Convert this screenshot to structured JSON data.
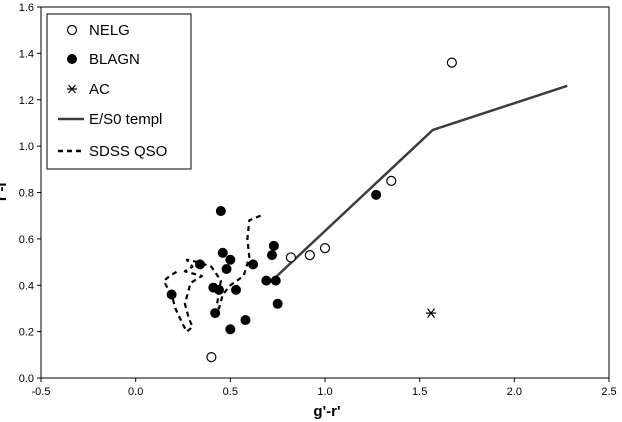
{
  "chart_data": {
    "type": "scatter",
    "xlabel": "g'-r'",
    "ylabel": "r'-i'",
    "xlim": [
      -0.5,
      2.5
    ],
    "ylim": [
      0.0,
      1.6
    ],
    "xticks": [
      -0.5,
      0.0,
      0.5,
      1.0,
      1.5,
      2.0,
      2.5
    ],
    "yticks": [
      0.0,
      0.2,
      0.4,
      0.6,
      0.8,
      1.0,
      1.2,
      1.4,
      1.6
    ],
    "xtick_labels": [
      "-0.5",
      "0.0",
      "0.5",
      "1.0",
      "1.5",
      "2.0",
      "2.5"
    ],
    "ytick_labels": [
      "0.0",
      "0.2",
      "0.4",
      "0.6",
      "0.8",
      "1.0",
      "1.2",
      "1.4",
      "1.6"
    ],
    "grid": false,
    "legend_position": "top-left",
    "series": [
      {
        "name": "NELG",
        "kind": "points",
        "marker": "open-circle",
        "points": [
          [
            0.4,
            0.09
          ],
          [
            0.82,
            0.52
          ],
          [
            0.92,
            0.53
          ],
          [
            1.0,
            0.56
          ],
          [
            1.35,
            0.85
          ],
          [
            1.67,
            1.36
          ]
        ]
      },
      {
        "name": "BLAGN",
        "kind": "points",
        "marker": "filled-circle",
        "points": [
          [
            0.19,
            0.36
          ],
          [
            0.34,
            0.49
          ],
          [
            0.41,
            0.39
          ],
          [
            0.42,
            0.28
          ],
          [
            0.44,
            0.38
          ],
          [
            0.45,
            0.72
          ],
          [
            0.46,
            0.54
          ],
          [
            0.48,
            0.47
          ],
          [
            0.5,
            0.51
          ],
          [
            0.5,
            0.21
          ],
          [
            0.53,
            0.38
          ],
          [
            0.58,
            0.25
          ],
          [
            0.62,
            0.49
          ],
          [
            0.69,
            0.42
          ],
          [
            0.72,
            0.53
          ],
          [
            0.73,
            0.57
          ],
          [
            0.74,
            0.42
          ],
          [
            0.75,
            0.32
          ],
          [
            1.27,
            0.79
          ]
        ]
      },
      {
        "name": "AC",
        "kind": "points",
        "marker": "asterisk",
        "points": [
          [
            1.56,
            0.28
          ]
        ]
      },
      {
        "name": "E/S0 templ",
        "kind": "line",
        "style": "solid",
        "color": "#3c3c3c",
        "points": [
          [
            0.72,
            0.42
          ],
          [
            1.57,
            1.07
          ],
          [
            2.28,
            1.26
          ]
        ]
      },
      {
        "name": "SDSS QSO",
        "kind": "line",
        "style": "dashed",
        "color": "#000000",
        "points": [
          [
            0.66,
            0.7
          ],
          [
            0.6,
            0.68
          ],
          [
            0.59,
            0.6
          ],
          [
            0.6,
            0.52
          ],
          [
            0.57,
            0.44
          ],
          [
            0.5,
            0.4
          ],
          [
            0.46,
            0.36
          ],
          [
            0.44,
            0.3
          ],
          [
            0.43,
            0.32
          ],
          [
            0.45,
            0.42
          ],
          [
            0.4,
            0.48
          ],
          [
            0.33,
            0.5
          ],
          [
            0.27,
            0.51
          ],
          [
            0.3,
            0.48
          ],
          [
            0.26,
            0.46
          ],
          [
            0.35,
            0.44
          ],
          [
            0.29,
            0.41
          ],
          [
            0.26,
            0.32
          ],
          [
            0.28,
            0.26
          ],
          [
            0.3,
            0.22
          ],
          [
            0.27,
            0.2
          ],
          [
            0.25,
            0.23
          ],
          [
            0.21,
            0.3
          ],
          [
            0.19,
            0.36
          ],
          [
            0.16,
            0.4
          ],
          [
            0.15,
            0.42
          ],
          [
            0.18,
            0.44
          ],
          [
            0.22,
            0.46
          ]
        ]
      }
    ]
  }
}
